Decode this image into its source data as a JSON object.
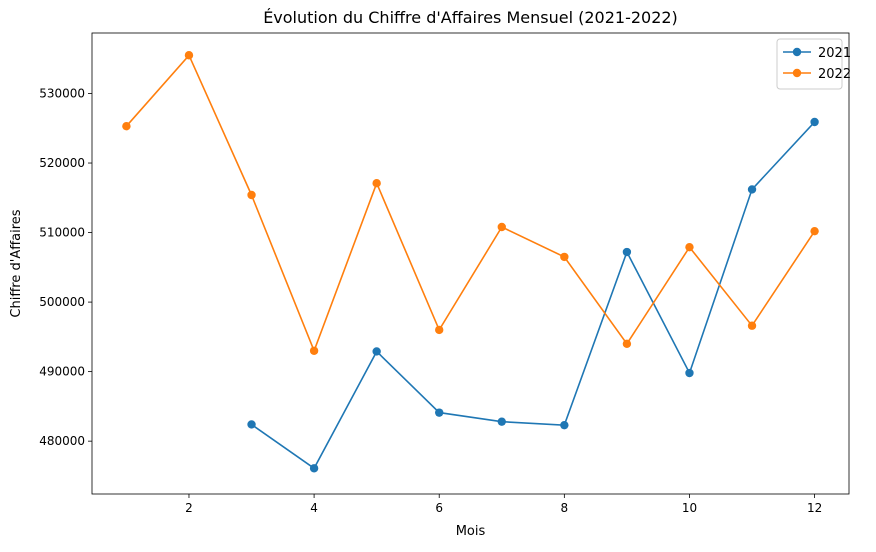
{
  "chart_data": {
    "type": "line",
    "title": "Évolution du Chiffre d'Affaires Mensuel (2021-2022)",
    "xlabel": "Mois",
    "ylabel": "Chiffre d'Affaires",
    "xlim": [
      0.45,
      12.55
    ],
    "ylim": [
      472400,
      538700
    ],
    "xticks": [
      2,
      4,
      6,
      8,
      10,
      12
    ],
    "yticks": [
      480000,
      490000,
      500000,
      510000,
      520000,
      530000
    ],
    "grid": false,
    "legend_position": "top-right",
    "series": [
      {
        "name": "2021",
        "color": "#1f77b4",
        "marker": "circle",
        "x": [
          3,
          4,
          5,
          6,
          7,
          8,
          9,
          10,
          11,
          12
        ],
        "values": [
          482400,
          476100,
          492900,
          484100,
          482800,
          482300,
          507200,
          489800,
          516200,
          525900
        ]
      },
      {
        "name": "2022",
        "color": "#ff7f0e",
        "marker": "circle",
        "x": [
          1,
          2,
          3,
          4,
          5,
          6,
          7,
          8,
          9,
          10,
          11,
          12
        ],
        "values": [
          525300,
          535500,
          515400,
          493000,
          517100,
          496000,
          510800,
          506500,
          494000,
          507900,
          496600,
          510200
        ]
      }
    ]
  }
}
